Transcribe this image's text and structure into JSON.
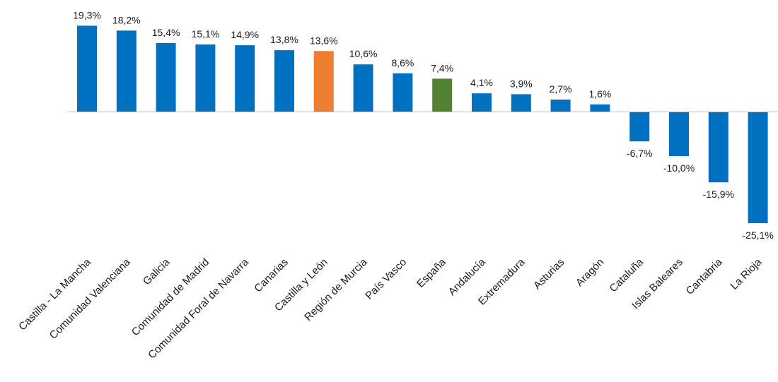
{
  "chart_data": {
    "type": "bar",
    "title": "",
    "xlabel": "",
    "ylabel": "",
    "ylim": [
      -25.1,
      19.3
    ],
    "grid": false,
    "legend": "none",
    "categories": [
      "Castilla - La Mancha",
      "Comunidad Valenciana",
      "Galicia",
      "Comunidad de Madrid",
      "Comunidad Foral de Navarra",
      "Canarias",
      "Castilla y León",
      "Región de Murcia",
      "País Vasco",
      "España",
      "Andalucía",
      "Extremadura",
      "Asturias",
      "Aragón",
      "Cataluña",
      "Islas Baleares",
      "Cantabria",
      "La Rioja"
    ],
    "values": [
      19.3,
      18.2,
      15.4,
      15.1,
      14.9,
      13.8,
      13.6,
      10.6,
      8.6,
      7.4,
      4.1,
      3.9,
      2.7,
      1.6,
      -6.7,
      -10.0,
      -15.9,
      -25.1
    ],
    "data_labels": [
      "19,3%",
      "18,2%",
      "15,4%",
      "15,1%",
      "14,9%",
      "13,8%",
      "13,6%",
      "10,6%",
      "8,6%",
      "7,4%",
      "4,1%",
      "3,9%",
      "2,7%",
      "1,6%",
      "-6,7%",
      "-10,0%",
      "-15,9%",
      "-25,1%"
    ],
    "colors": {
      "default": "#0070C0",
      "highlight": "#ED7D31",
      "national": "#548235",
      "axis": "#BFBFBF"
    },
    "bar_colors": [
      "default",
      "default",
      "default",
      "default",
      "default",
      "default",
      "highlight",
      "default",
      "default",
      "national",
      "default",
      "default",
      "default",
      "default",
      "default",
      "default",
      "default",
      "default"
    ]
  }
}
